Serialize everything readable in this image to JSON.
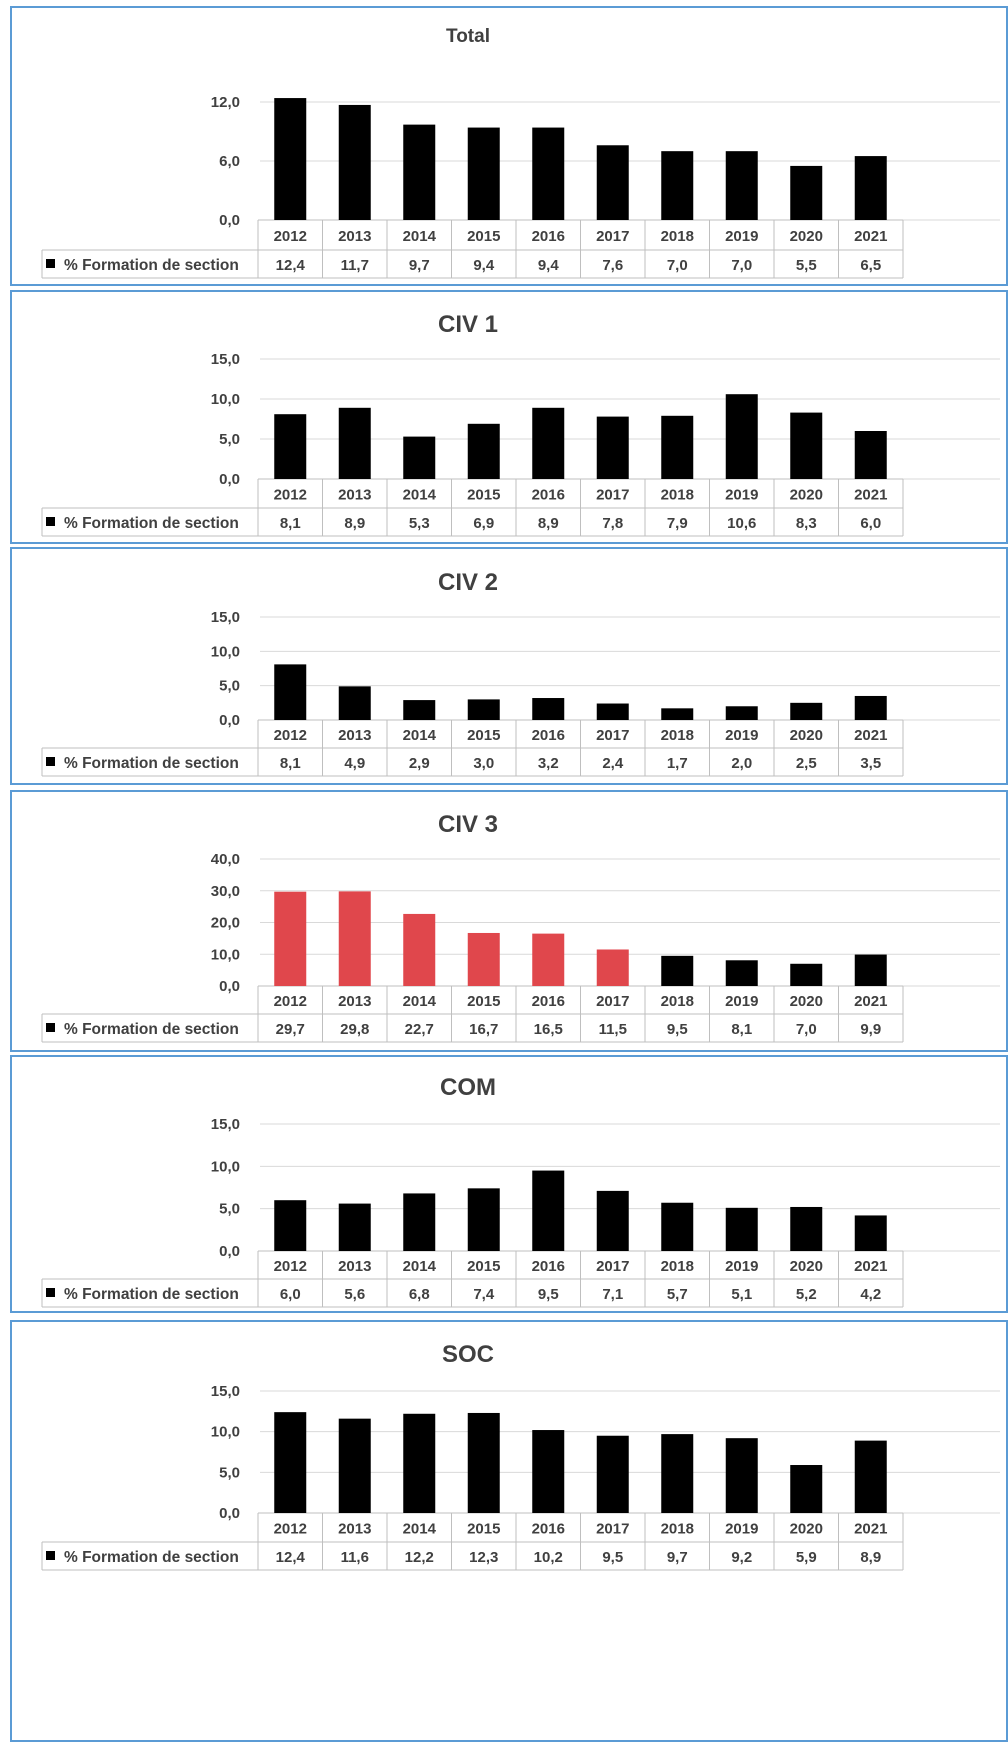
{
  "series_label": "% Formation de section",
  "colors": {
    "bar": "#000000",
    "highlight": "#e0474c",
    "grid": "#d9d9d9",
    "table_border": "#bfbfbf",
    "frame": "#5b9bd5",
    "text": "#404040"
  },
  "chart_data": [
    {
      "type": "bar",
      "title": "Total",
      "categories": [
        "2012",
        "2013",
        "2014",
        "2015",
        "2016",
        "2017",
        "2018",
        "2019",
        "2020",
        "2021"
      ],
      "labels": [
        "12,4",
        "11,7",
        "9,7",
        "9,4",
        "9,4",
        "7,6",
        "7,0",
        "7,0",
        "5,5",
        "6,5"
      ],
      "series": [
        {
          "name": "% Formation de section",
          "values": [
            12.4,
            11.7,
            9.7,
            9.4,
            9.4,
            7.6,
            7.0,
            7.0,
            5.5,
            6.5
          ]
        }
      ],
      "yticks": [
        "0,0",
        "6,0",
        "12,0"
      ],
      "ylim": [
        0,
        12
      ],
      "grid": true,
      "legend": "table-left"
    },
    {
      "type": "bar",
      "title": "CIV 1",
      "categories": [
        "2012",
        "2013",
        "2014",
        "2015",
        "2016",
        "2017",
        "2018",
        "2019",
        "2020",
        "2021"
      ],
      "labels": [
        "8,1",
        "8,9",
        "5,3",
        "6,9",
        "8,9",
        "7,8",
        "7,9",
        "10,6",
        "8,3",
        "6,0"
      ],
      "series": [
        {
          "name": "% Formation de section",
          "values": [
            8.1,
            8.9,
            5.3,
            6.9,
            8.9,
            7.8,
            7.9,
            10.6,
            8.3,
            6.0
          ]
        }
      ],
      "yticks": [
        "0,0",
        "5,0",
        "10,0",
        "15,0"
      ],
      "ylim": [
        0,
        15
      ],
      "grid": true,
      "legend": "table-left"
    },
    {
      "type": "bar",
      "title": "CIV 2",
      "categories": [
        "2012",
        "2013",
        "2014",
        "2015",
        "2016",
        "2017",
        "2018",
        "2019",
        "2020",
        "2021"
      ],
      "labels": [
        "8,1",
        "4,9",
        "2,9",
        "3,0",
        "3,2",
        "2,4",
        "1,7",
        "2,0",
        "2,5",
        "3,5"
      ],
      "series": [
        {
          "name": "% Formation de section",
          "values": [
            8.1,
            4.9,
            2.9,
            3.0,
            3.2,
            2.4,
            1.7,
            2.0,
            2.5,
            3.5
          ]
        }
      ],
      "yticks": [
        "0,0",
        "5,0",
        "10,0",
        "15,0"
      ],
      "ylim": [
        0,
        15
      ],
      "grid": true,
      "legend": "table-left"
    },
    {
      "type": "bar",
      "title": "CIV 3",
      "categories": [
        "2012",
        "2013",
        "2014",
        "2015",
        "2016",
        "2017",
        "2018",
        "2019",
        "2020",
        "2021"
      ],
      "labels": [
        "29,7",
        "29,8",
        "22,7",
        "16,7",
        "16,5",
        "11,5",
        "9,5",
        "8,1",
        "7,0",
        "9,9"
      ],
      "series": [
        {
          "name": "% Formation de section",
          "values": [
            29.7,
            29.8,
            22.7,
            16.7,
            16.5,
            11.5,
            9.5,
            8.1,
            7.0,
            9.9
          ]
        }
      ],
      "highlight_count": 6,
      "yticks": [
        "0,0",
        "10,0",
        "20,0",
        "30,0",
        "40,0"
      ],
      "ylim": [
        0,
        40
      ],
      "grid": true,
      "legend": "table-left"
    },
    {
      "type": "bar",
      "title": "COM",
      "categories": [
        "2012",
        "2013",
        "2014",
        "2015",
        "2016",
        "2017",
        "2018",
        "2019",
        "2020",
        "2021"
      ],
      "labels": [
        "6,0",
        "5,6",
        "6,8",
        "7,4",
        "9,5",
        "7,1",
        "5,7",
        "5,1",
        "5,2",
        "4,2"
      ],
      "series": [
        {
          "name": "% Formation de section",
          "values": [
            6.0,
            5.6,
            6.8,
            7.4,
            9.5,
            7.1,
            5.7,
            5.1,
            5.2,
            4.2
          ]
        }
      ],
      "yticks": [
        "0,0",
        "5,0",
        "10,0",
        "15,0"
      ],
      "ylim": [
        0,
        15
      ],
      "grid": true,
      "legend": "table-left"
    },
    {
      "type": "bar",
      "title": "SOC",
      "categories": [
        "2012",
        "2013",
        "2014",
        "2015",
        "2016",
        "2017",
        "2018",
        "2019",
        "2020",
        "2021"
      ],
      "labels": [
        "12,4",
        "11,6",
        "12,2",
        "12,3",
        "10,2",
        "9,5",
        "9,7",
        "9,2",
        "5,9",
        "8,9"
      ],
      "series": [
        {
          "name": "% Formation de section",
          "values": [
            12.4,
            11.6,
            12.2,
            12.3,
            10.2,
            9.5,
            9.7,
            9.2,
            5.9,
            8.9
          ]
        }
      ],
      "yticks": [
        "0,0",
        "5,0",
        "10,0",
        "15,0"
      ],
      "ylim": [
        0,
        15
      ],
      "grid": true,
      "legend": "table-left"
    }
  ]
}
